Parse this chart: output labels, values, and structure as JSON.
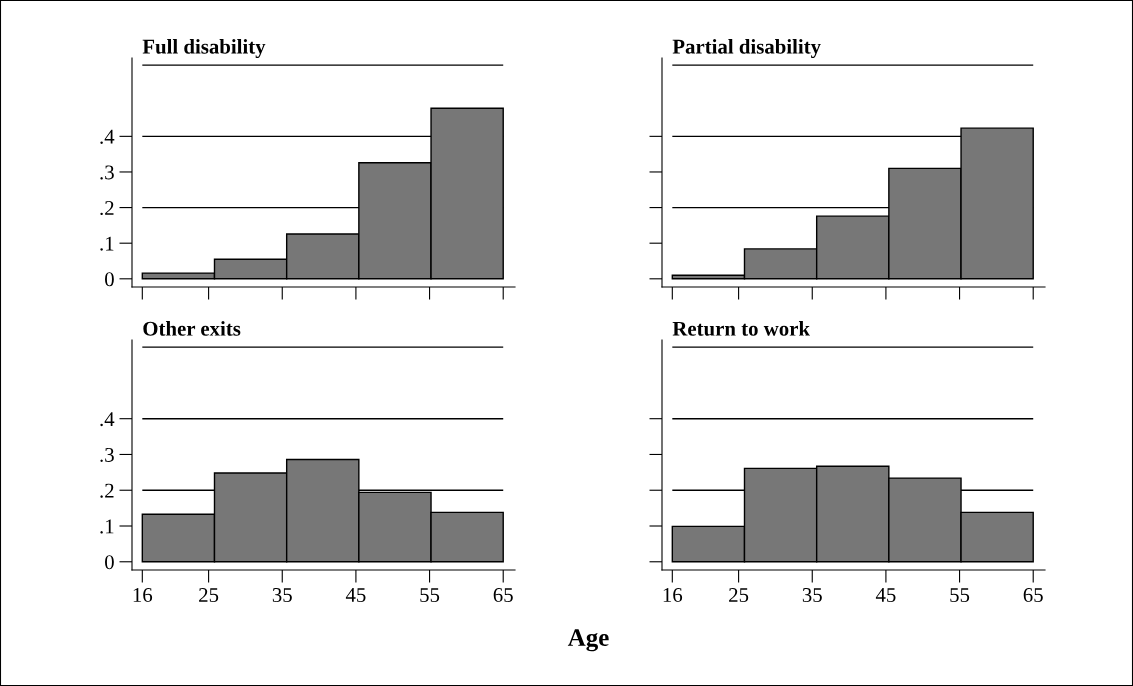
{
  "chart_data": [
    {
      "type": "histogram",
      "title": "Full disability",
      "bins": [
        16,
        25.8,
        35.6,
        45.4,
        55.2,
        65
      ],
      "values": [
        0.016,
        0.055,
        0.126,
        0.326,
        0.479
      ],
      "color": "#777777",
      "xlim": [
        14.6,
        66.6
      ],
      "xticks": [
        {
          "value": 16,
          "label": null
        },
        {
          "value": 25,
          "label": null
        },
        {
          "value": 35,
          "label": null
        },
        {
          "value": 45,
          "label": null
        },
        {
          "value": 55,
          "label": null
        },
        {
          "value": 65,
          "label": null
        }
      ],
      "ylim": [
        -0.023,
        0.62
      ],
      "yticks": [
        {
          "value": 0,
          "label": "0"
        },
        {
          "value": 0.1,
          "label": ".1"
        },
        {
          "value": 0.2,
          "label": ".2"
        },
        {
          "value": 0.3,
          "label": ".3"
        },
        {
          "value": 0.4,
          "label": ".4"
        }
      ],
      "tick_labels": "y",
      "ref_lines": [
        {
          "axis": "y",
          "value": 0.2,
          "color": "#000000"
        },
        {
          "axis": "y",
          "value": 0.4,
          "color": "#000000"
        },
        {
          "axis": "y",
          "value": 0.6,
          "color": "#000000"
        }
      ]
    },
    {
      "type": "histogram",
      "title": "Partial disability",
      "bins": [
        16,
        25.8,
        35.6,
        45.4,
        55.2,
        65
      ],
      "values": [
        0.01,
        0.084,
        0.176,
        0.31,
        0.423
      ],
      "color": "#777777",
      "xlim": [
        14.6,
        66.6
      ],
      "xticks": [
        {
          "value": 16,
          "label": null
        },
        {
          "value": 25,
          "label": null
        },
        {
          "value": 35,
          "label": null
        },
        {
          "value": 45,
          "label": null
        },
        {
          "value": 55,
          "label": null
        },
        {
          "value": 65,
          "label": null
        }
      ],
      "ylim": [
        -0.023,
        0.62
      ],
      "yticks": [
        {
          "value": 0,
          "label": null
        },
        {
          "value": 0.1,
          "label": null
        },
        {
          "value": 0.2,
          "label": null
        },
        {
          "value": 0.3,
          "label": null
        },
        {
          "value": 0.4,
          "label": null
        }
      ],
      "tick_labels": false,
      "ref_lines": [
        {
          "axis": "y",
          "value": 0.2,
          "color": "#000000"
        },
        {
          "axis": "y",
          "value": 0.4,
          "color": "#000000"
        },
        {
          "axis": "y",
          "value": 0.6,
          "color": "#000000"
        }
      ]
    },
    {
      "type": "histogram",
      "title": "Other exits",
      "xlabel": "Age",
      "bins": [
        16,
        25.8,
        35.6,
        45.4,
        55.2,
        65
      ],
      "values": [
        0.133,
        0.248,
        0.286,
        0.194,
        0.138
      ],
      "color": "#777777",
      "xlim": [
        14.6,
        66.6
      ],
      "xticks": [
        16,
        25,
        35,
        45,
        55,
        65
      ],
      "ylim": [
        -0.023,
        0.62
      ],
      "yticks": [
        {
          "value": 0,
          "label": "0"
        },
        {
          "value": 0.1,
          "label": ".1"
        },
        {
          "value": 0.2,
          "label": ".2"
        },
        {
          "value": 0.3,
          "label": ".3"
        },
        {
          "value": 0.4,
          "label": ".4"
        }
      ],
      "ref_lines": [
        {
          "axis": "y",
          "value": 0.2,
          "color": "#000000"
        },
        {
          "axis": "y",
          "value": 0.4,
          "color": "#000000"
        },
        {
          "axis": "y",
          "value": 0.6,
          "color": "#000000"
        }
      ]
    },
    {
      "type": "histogram",
      "title": "Return to work",
      "bins": [
        16,
        25.8,
        35.6,
        45.4,
        55.2,
        65
      ],
      "values": [
        0.099,
        0.261,
        0.267,
        0.234,
        0.138
      ],
      "color": "#777777",
      "xlim": [
        14.6,
        66.6
      ],
      "xticks": [
        16,
        25,
        35,
        45,
        55,
        65
      ],
      "ylim": [
        -0.023,
        0.62
      ],
      "yticks": [
        {
          "value": 0,
          "label": null
        },
        {
          "value": 0.1,
          "label": null
        },
        {
          "value": 0.2,
          "label": null
        },
        {
          "value": 0.3,
          "label": null
        },
        {
          "value": 0.4,
          "label": null
        }
      ],
      "tick_labels": "x",
      "ref_lines": [
        {
          "axis": "y",
          "value": 0.2,
          "color": "#000000"
        },
        {
          "axis": "y",
          "value": 0.4,
          "color": "#000000"
        },
        {
          "axis": "y",
          "value": 0.6,
          "color": "#000000"
        }
      ]
    }
  ]
}
